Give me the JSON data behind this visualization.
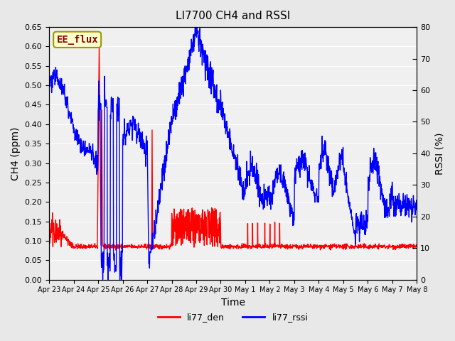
{
  "title": "LI7700 CH4 and RSSI",
  "xlabel": "Time",
  "ylabel_left": "CH4 (ppm)",
  "ylabel_right": "RSSI (%)",
  "annotation_text": "EE_flux",
  "annotation_bg": "#ffffcc",
  "annotation_border": "#999900",
  "legend_labels": [
    "li77_den",
    "li77_rssi"
  ],
  "legend_colors": [
    "red",
    "blue"
  ],
  "ylim_left": [
    0.0,
    0.65
  ],
  "ylim_right": [
    0,
    80
  ],
  "yticks_left": [
    0.0,
    0.05,
    0.1,
    0.15,
    0.2,
    0.25,
    0.3,
    0.35,
    0.4,
    0.45,
    0.5,
    0.55,
    0.6,
    0.65
  ],
  "yticks_right": [
    0,
    10,
    20,
    30,
    40,
    50,
    60,
    70,
    80
  ],
  "bg_color": "#e8e8e8",
  "plot_bg": "#f0f0f0",
  "grid_color": "white",
  "line_color_ch4": "red",
  "line_color_rssi": "blue",
  "line_width": 1.0
}
